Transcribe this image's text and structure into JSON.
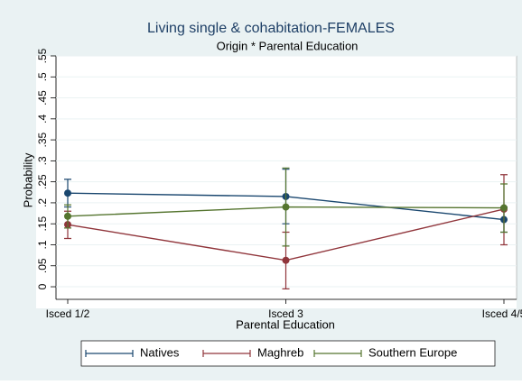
{
  "chart_data": {
    "type": "line",
    "title": "Living single & cohabitation-FEMALES",
    "subtitle": "Origin * Parental Education",
    "x_label": "Parental Education",
    "y_label": "Probability",
    "categories": [
      "Isced 1/2",
      "Isced 3",
      "Isced 4/5"
    ],
    "series": [
      {
        "name": "Natives",
        "color": "#1a476f",
        "values": [
          0.223,
          0.215,
          0.16
        ],
        "lower": [
          0.19,
          0.15,
          0.13
        ],
        "upper": [
          0.256,
          0.28,
          0.19
        ]
      },
      {
        "name": "Maghreb",
        "color": "#90353b",
        "values": [
          0.148,
          0.063,
          0.185
        ],
        "lower": [
          0.115,
          -0.005,
          0.1
        ],
        "upper": [
          0.18,
          0.13,
          0.267
        ]
      },
      {
        "name": "Southern Europe",
        "color": "#55752f",
        "values": [
          0.168,
          0.19,
          0.188
        ],
        "lower": [
          0.14,
          0.097,
          0.13
        ],
        "upper": [
          0.195,
          0.283,
          0.245
        ]
      }
    ],
    "ylim": [
      -0.03,
      0.55
    ],
    "yticks": [
      0,
      {
        "value": 0.05,
        "label": ".05"
      },
      {
        "value": 0.1,
        "label": ".1"
      },
      {
        "value": 0.15,
        "label": ".15"
      },
      {
        "value": 0.2,
        "label": ".2"
      },
      {
        "value": 0.25,
        "label": ".25"
      },
      {
        "value": 0.3,
        "label": ".3"
      },
      {
        "value": 0.35,
        "label": ".35"
      },
      {
        "value": 0.4,
        "label": ".4"
      },
      {
        "value": 0.45,
        "label": ".45"
      },
      {
        "value": 0.5,
        "label": ".5"
      },
      {
        "value": 0.55,
        "label": ".55"
      }
    ],
    "grid": true,
    "legend": "bottom"
  }
}
